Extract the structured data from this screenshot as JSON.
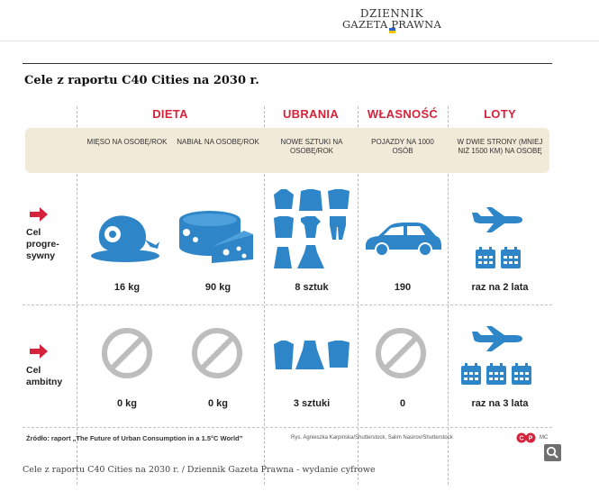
{
  "site": {
    "logo_line1": "DZIENNIK",
    "logo_line2": "GAZETA PRAWNA",
    "flag_colors": [
      "#2a62c9",
      "#f2c200"
    ]
  },
  "infographic": {
    "title": "Cele z raportu C40 Cities na 2030 r.",
    "categories": [
      {
        "label": "DIETA"
      },
      {
        "label": "UBRANIA"
      },
      {
        "label": "WŁASNOŚĆ"
      },
      {
        "label": "LOTY"
      }
    ],
    "columns": [
      {
        "header": "MIĘSO NA OSOBĘ/ROK",
        "icon": "ham-icon"
      },
      {
        "header": "NABIAŁ NA OSOBĘ/ROK",
        "icon": "cheese-icon"
      },
      {
        "header": "NOWE SZTUKI NA OSOBĘ/ROK",
        "icon": "clothes-icon"
      },
      {
        "header": "POJAZDY NA 1000 OSÓB",
        "icon": "car-icon"
      },
      {
        "header": "W DWIE STRONY (MNIEJ NIŻ 1500 KM) NA OSOBĘ",
        "icon": "plane-icon"
      }
    ],
    "rows": [
      {
        "label_lines": [
          "Cel",
          "progre-",
          "sywny"
        ],
        "values": [
          "16 kg",
          "90 kg",
          "8 sztuk",
          "190",
          "raz na 2 lata"
        ]
      },
      {
        "label_lines": [
          "Cel",
          "ambitny"
        ],
        "values": [
          "0 kg",
          "0 kg",
          "3 sztuki",
          "0",
          "raz na 3 lata"
        ]
      }
    ],
    "source": "Źródło: raport „The Future of Urban Consumption in a 1.5°C World”",
    "credit": "Rys. Agnieszka Karpinska/Shutterstock, Salim Nasirov/Shutterstock",
    "credit_initials": "MC",
    "colors": {
      "accent_red": "#d4233a",
      "icon_blue": "#2e86c8",
      "band_beige": "#f1ead8",
      "prohibited_gray": "#bdbdbd"
    }
  },
  "caption": "Cele z raportu C40 Cities na 2030 r. / Dziennik Gazeta Prawna - wydanie cyfrowe",
  "controls": {
    "zoom_icon": "magnifier-icon"
  }
}
